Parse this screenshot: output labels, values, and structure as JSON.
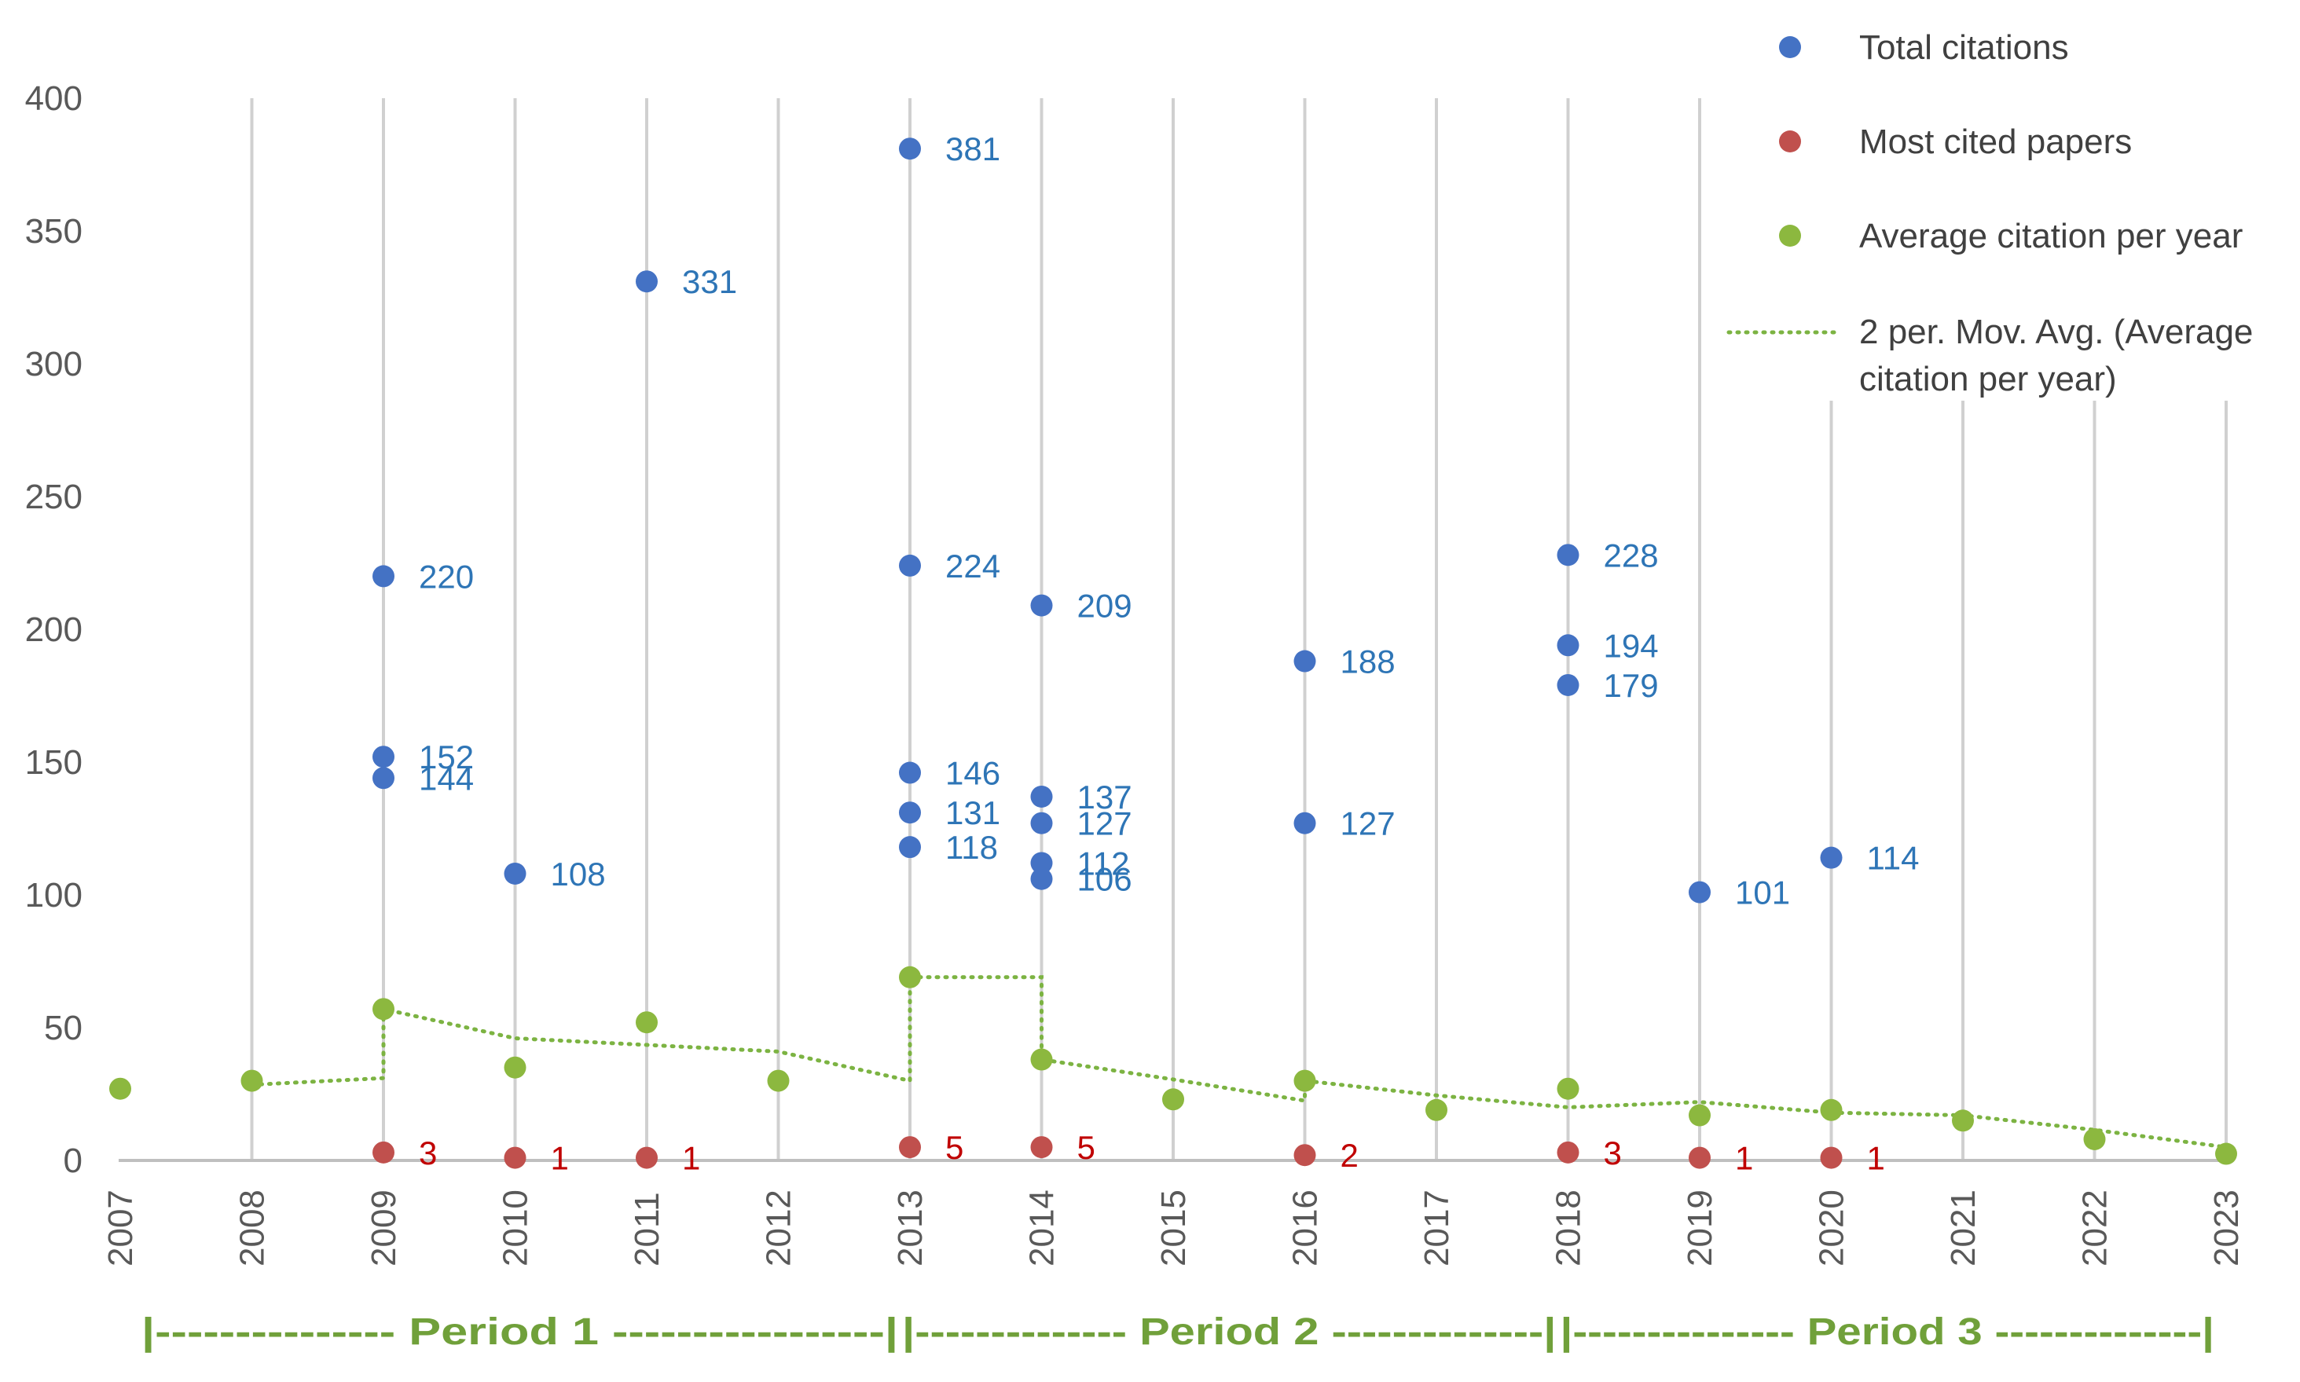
{
  "chart_data": {
    "type": "scatter",
    "title": "",
    "xlabel": "",
    "ylabel": "",
    "ylim": [
      0,
      400
    ],
    "yticks": [
      0,
      50,
      100,
      150,
      200,
      250,
      300,
      350,
      400
    ],
    "categories": [
      "2007",
      "2008",
      "2009",
      "2010",
      "2011",
      "2012",
      "2013",
      "2014",
      "2015",
      "2016",
      "2017",
      "2018",
      "2019",
      "2020",
      "2021",
      "2022",
      "2023"
    ],
    "grid": "vertical",
    "legend_position": "top-right",
    "colors": {
      "total": "#4472c4",
      "total_label": "#2e75b6",
      "most": "#c0504d",
      "most_label": "#c00000",
      "avg": "#8cb83f",
      "trend": "#7cb342",
      "period": "#70a03a",
      "grid": "#d0d0d0",
      "axis": "#bfbfbf"
    },
    "series": [
      {
        "name": "Total citations",
        "points": [
          {
            "x": "2009",
            "y": 220
          },
          {
            "x": "2009",
            "y": 152
          },
          {
            "x": "2009",
            "y": 144
          },
          {
            "x": "2010",
            "y": 108
          },
          {
            "x": "2011",
            "y": 331
          },
          {
            "x": "2013",
            "y": 381
          },
          {
            "x": "2013",
            "y": 224
          },
          {
            "x": "2013",
            "y": 146
          },
          {
            "x": "2013",
            "y": 131
          },
          {
            "x": "2013",
            "y": 118
          },
          {
            "x": "2014",
            "y": 209
          },
          {
            "x": "2014",
            "y": 137
          },
          {
            "x": "2014",
            "y": 127
          },
          {
            "x": "2014",
            "y": 112
          },
          {
            "x": "2014",
            "y": 106
          },
          {
            "x": "2016",
            "y": 188
          },
          {
            "x": "2016",
            "y": 127
          },
          {
            "x": "2018",
            "y": 228
          },
          {
            "x": "2018",
            "y": 194
          },
          {
            "x": "2018",
            "y": 179
          },
          {
            "x": "2019",
            "y": 101
          },
          {
            "x": "2020",
            "y": 114
          }
        ]
      },
      {
        "name": "Most cited papers",
        "points": [
          {
            "x": "2009",
            "y": 3
          },
          {
            "x": "2010",
            "y": 1
          },
          {
            "x": "2011",
            "y": 1
          },
          {
            "x": "2013",
            "y": 5
          },
          {
            "x": "2014",
            "y": 5
          },
          {
            "x": "2016",
            "y": 2
          },
          {
            "x": "2018",
            "y": 3
          },
          {
            "x": "2019",
            "y": 1
          },
          {
            "x": "2020",
            "y": 1
          }
        ]
      },
      {
        "name": "Average citation per year",
        "points": [
          {
            "x": "2007",
            "y": 27
          },
          {
            "x": "2008",
            "y": 30
          },
          {
            "x": "2009",
            "y": 57
          },
          {
            "x": "2010",
            "y": 35
          },
          {
            "x": "2011",
            "y": 52
          },
          {
            "x": "2012",
            "y": 30
          },
          {
            "x": "2013",
            "y": 69
          },
          {
            "x": "2014",
            "y": 38
          },
          {
            "x": "2015",
            "y": 23
          },
          {
            "x": "2016",
            "y": 30
          },
          {
            "x": "2017",
            "y": 19
          },
          {
            "x": "2018",
            "y": 27
          },
          {
            "x": "2019",
            "y": 17
          },
          {
            "x": "2020",
            "y": 19
          },
          {
            "x": "2021",
            "y": 15
          },
          {
            "x": "2022",
            "y": 8
          },
          {
            "x": "2023",
            "y": 2.5
          }
        ]
      },
      {
        "name": "2 per. Mov. Avg. (Average citation per year)",
        "name_line1": "2 per. Mov. Avg. (Average",
        "name_line2": "citation per year)",
        "style": "dotted",
        "points": [
          {
            "x": "2008",
            "y": 28.5
          },
          {
            "x": "2009",
            "y": 31
          },
          {
            "x": "2009",
            "y": 57
          },
          {
            "x": "2010",
            "y": 46
          },
          {
            "x": "2011",
            "y": 43.5
          },
          {
            "x": "2012",
            "y": 41
          },
          {
            "x": "2013",
            "y": 30
          },
          {
            "x": "2013",
            "y": 69
          },
          {
            "x": "2014",
            "y": 69
          },
          {
            "x": "2014",
            "y": 38
          },
          {
            "x": "2015",
            "y": 30.5
          },
          {
            "x": "2016",
            "y": 22.5
          },
          {
            "x": "2016",
            "y": 30
          },
          {
            "x": "2017",
            "y": 24.5
          },
          {
            "x": "2018",
            "y": 20
          },
          {
            "x": "2019",
            "y": 22
          },
          {
            "x": "2020",
            "y": 18
          },
          {
            "x": "2021",
            "y": 17
          },
          {
            "x": "2022",
            "y": 11.5
          },
          {
            "x": "2023",
            "y": 5
          }
        ]
      }
    ],
    "periods": [
      {
        "label": "Period 1",
        "start": "2007",
        "end": "2013",
        "text": "|--------------- Period 1 -----------------|"
      },
      {
        "label": "Period 2",
        "start": "2013",
        "end": "2018",
        "text": "|-------------- Period 2 --------------|"
      },
      {
        "label": "Period 3",
        "start": "2018",
        "end": "2023",
        "text": "|--------------- Period 3 --------------|"
      }
    ]
  }
}
